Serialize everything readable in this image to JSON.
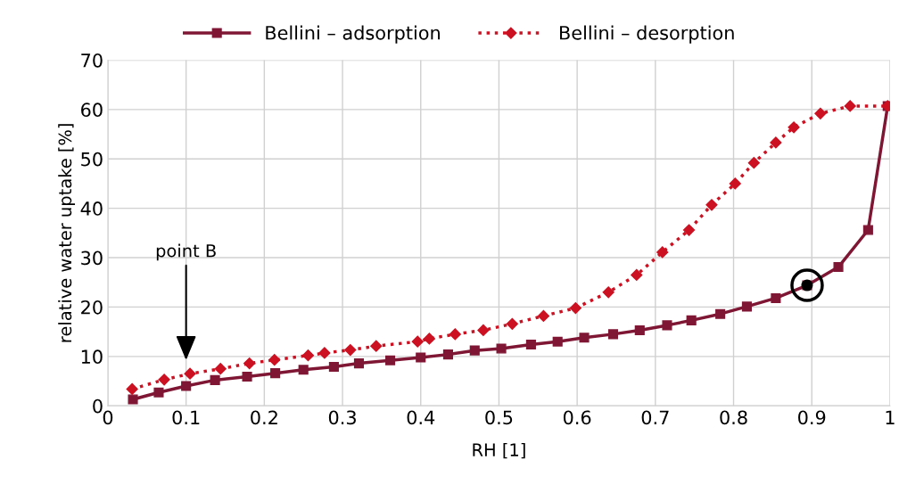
{
  "chart_data": {
    "type": "line",
    "xlabel": "RH [1]",
    "ylabel": "relative water uptake [%]",
    "xlim": [
      0,
      1
    ],
    "xticks": [
      0,
      0.1,
      0.2,
      0.3,
      0.4,
      0.5,
      0.6,
      0.7,
      0.8,
      0.9,
      1
    ],
    "ylim": [
      0,
      70
    ],
    "yticks": [
      0,
      10,
      20,
      30,
      40,
      50,
      60,
      70
    ],
    "grid": true,
    "legend": "top",
    "annotations": [
      "point B"
    ],
    "series": [
      {
        "name": "Bellini – adsorption",
        "color": "#7f1734",
        "marker": "square",
        "line_style": "solid",
        "x": [
          0.032,
          0.065,
          0.1,
          0.137,
          0.178,
          0.214,
          0.25,
          0.289,
          0.321,
          0.361,
          0.4,
          0.435,
          0.469,
          0.503,
          0.541,
          0.575,
          0.609,
          0.646,
          0.68,
          0.715,
          0.746,
          0.783,
          0.817,
          0.854,
          0.894,
          0.934,
          0.972,
          0.997
        ],
        "values": [
          1.3,
          2.7,
          4.0,
          5.2,
          5.9,
          6.6,
          7.3,
          7.9,
          8.6,
          9.2,
          9.8,
          10.4,
          11.2,
          11.6,
          12.4,
          13.0,
          13.8,
          14.5,
          15.3,
          16.3,
          17.3,
          18.6,
          20.1,
          21.8,
          24.4,
          28.1,
          35.6,
          60.7
        ]
      },
      {
        "name": "Bellini – desorption",
        "color": "#cc1122",
        "marker": "diamond",
        "line_style": "dotted",
        "x": [
          0.031,
          0.072,
          0.105,
          0.144,
          0.181,
          0.213,
          0.256,
          0.277,
          0.31,
          0.343,
          0.396,
          0.411,
          0.444,
          0.48,
          0.517,
          0.557,
          0.598,
          0.64,
          0.676,
          0.709,
          0.743,
          0.772,
          0.802,
          0.826,
          0.854,
          0.877,
          0.911,
          0.949,
          0.997
        ],
        "values": [
          3.4,
          5.3,
          6.5,
          7.5,
          8.6,
          9.3,
          10.2,
          10.7,
          11.3,
          12.1,
          13.0,
          13.6,
          14.5,
          15.3,
          16.6,
          18.2,
          19.8,
          23.0,
          26.5,
          31.1,
          35.6,
          40.7,
          45.0,
          49.2,
          53.3,
          56.4,
          59.2,
          60.7,
          60.7
        ]
      },
      {
        "type": "scatter",
        "color": "#000000",
        "marker": "circle",
        "x": [
          0.894
        ],
        "values": [
          24.4
        ]
      }
    ]
  }
}
